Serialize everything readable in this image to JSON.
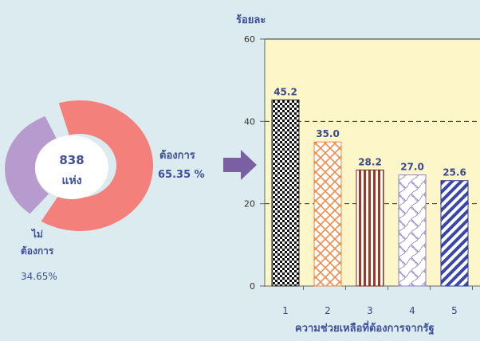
{
  "donut": {
    "center_value": "838",
    "center_unit": "แห่ง",
    "want_label": "ต้องการ",
    "want_percent": "65.35 %",
    "not_label_line1": "ไม่",
    "not_label_line2": "ต้องการ",
    "not_percent": "34.65%",
    "want_value": 65.35,
    "not_value": 34.65,
    "colors": {
      "want": "#f4807c",
      "not": "#b79bcf",
      "center": "#ffffff",
      "arrow": "#7b5fa3"
    }
  },
  "chart_data": {
    "type": "bar",
    "ylabel": "ร้อยละ",
    "xlabel": "ความช่วยเหลือที่ต้องการจากรัฐ",
    "categories": [
      "1",
      "2",
      "3",
      "4",
      "5"
    ],
    "values": [
      45.2,
      35.0,
      28.2,
      27.0,
      25.6
    ],
    "value_labels": [
      "45.2",
      "35.0",
      "28.2",
      "27.0",
      "25.6"
    ],
    "ylim": [
      0,
      60
    ],
    "yticks": [
      "0",
      "20",
      "40",
      "60"
    ],
    "grid": "dashed horizontal",
    "plot_background": "#fdf6c8",
    "bar_patterns": [
      "dots-black",
      "diamond-orange",
      "stripes-brown",
      "wave-purple",
      "diagonal-blue"
    ]
  }
}
